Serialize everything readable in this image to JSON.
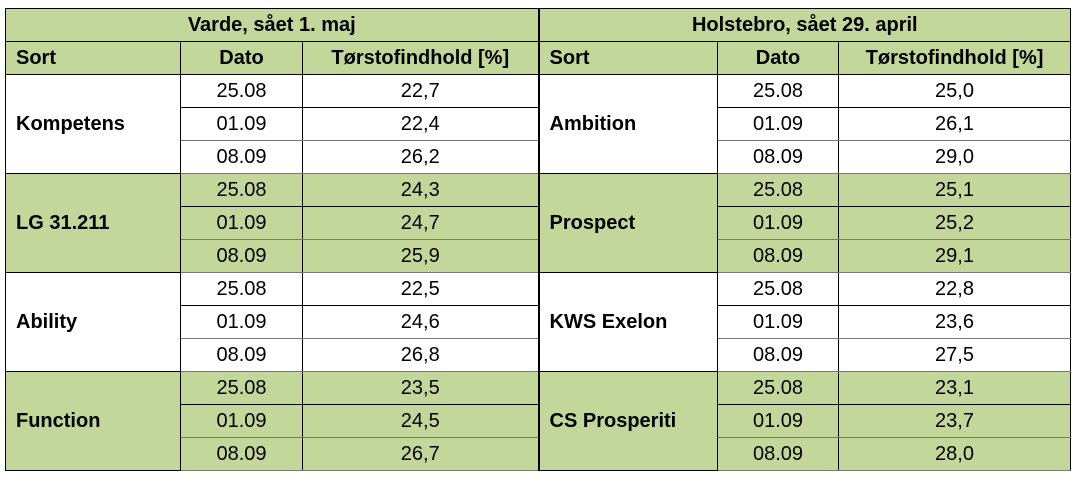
{
  "table": {
    "groups": [
      "Varde, sået 1. maj",
      "Holstebro, sået 29. april"
    ],
    "columns": [
      "Sort",
      "Dato",
      "Tørstofindhold [%]",
      "Sort",
      "Dato",
      "Tørstofindhold [%]"
    ],
    "blocks": [
      {
        "left": {
          "sort": "Kompetens",
          "rows": [
            [
              "25.08",
              "22,7"
            ],
            [
              "01.09",
              "22,4"
            ],
            [
              "08.09",
              "26,2"
            ]
          ]
        },
        "right": {
          "sort": "Ambition",
          "rows": [
            [
              "25.08",
              "25,0"
            ],
            [
              "01.09",
              "26,1"
            ],
            [
              "08.09",
              "29,0"
            ]
          ]
        }
      },
      {
        "left": {
          "sort": "LG 31.211",
          "rows": [
            [
              "25.08",
              "24,3"
            ],
            [
              "01.09",
              "24,7"
            ],
            [
              "08.09",
              "25,9"
            ]
          ]
        },
        "right": {
          "sort": "Prospect",
          "rows": [
            [
              "25.08",
              "25,1"
            ],
            [
              "01.09",
              "25,2"
            ],
            [
              "08.09",
              "29,1"
            ]
          ]
        }
      },
      {
        "left": {
          "sort": "Ability",
          "rows": [
            [
              "25.08",
              "22,5"
            ],
            [
              "01.09",
              "24,6"
            ],
            [
              "08.09",
              "26,8"
            ]
          ]
        },
        "right": {
          "sort": "KWS Exelon",
          "rows": [
            [
              "25.08",
              "22,8"
            ],
            [
              "01.09",
              "23,6"
            ],
            [
              "08.09",
              "27,5"
            ]
          ]
        }
      },
      {
        "left": {
          "sort": "Function",
          "rows": [
            [
              "25.08",
              "23,5"
            ],
            [
              "01.09",
              "24,5"
            ],
            [
              "08.09",
              "26,7"
            ]
          ]
        },
        "right": {
          "sort": "CS Prosperiti",
          "rows": [
            [
              "25.08",
              "23,1"
            ],
            [
              "01.09",
              "23,7"
            ],
            [
              "08.09",
              "28,0"
            ]
          ]
        }
      }
    ]
  }
}
